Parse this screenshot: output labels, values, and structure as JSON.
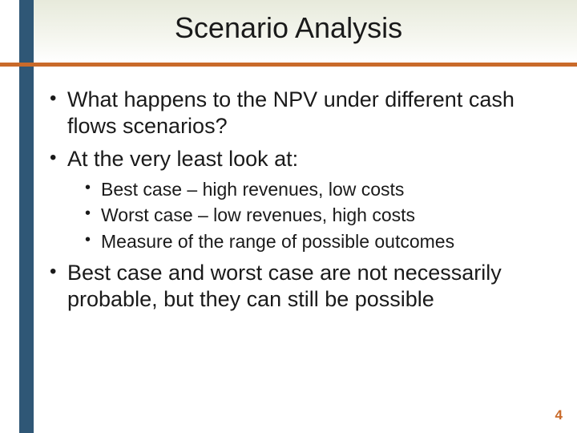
{
  "theme": {
    "left_rail_color": "#2f5776",
    "rule_color": "#c96a2a",
    "header_gradient_top": "#e7eadb",
    "header_gradient_bottom": "#ffffff",
    "text_color": "#1a1a1a",
    "pagenum_color": "#c96a2a",
    "title_fontsize": 36,
    "lvl1_fontsize": 27,
    "lvl2_fontsize": 23
  },
  "title": "Scenario Analysis",
  "bullets": {
    "b0": "What happens to the NPV under different cash flows scenarios?",
    "b1": "At the very least look at:",
    "b1_sub": {
      "s0": "Best case – high revenues, low costs",
      "s1": "Worst case – low revenues, high costs",
      "s2": "Measure of the range of possible outcomes"
    },
    "b2": "Best case and worst case are not necessarily probable, but they can still be possible"
  },
  "page_number": "4"
}
